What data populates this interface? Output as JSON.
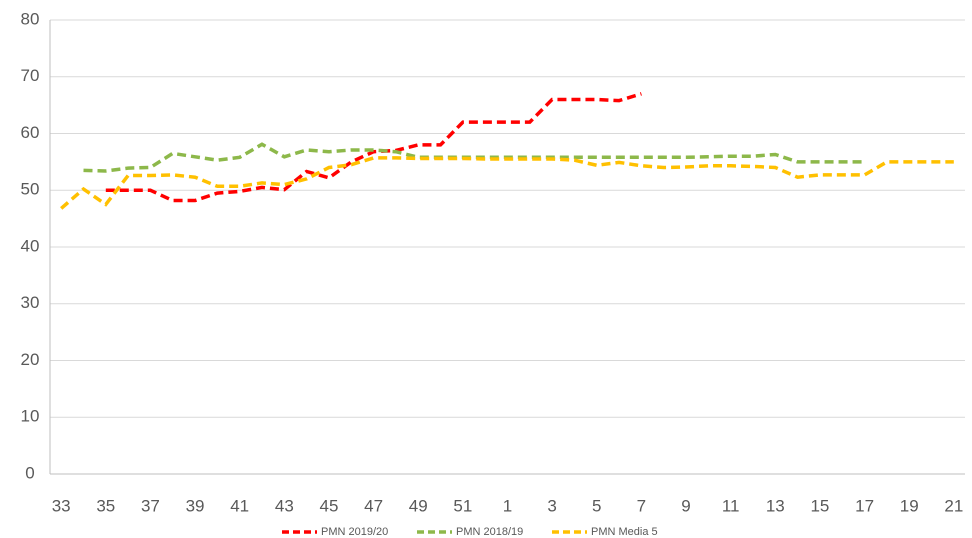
{
  "chart_data": {
    "type": "line",
    "categories": [
      "33",
      null,
      "35",
      null,
      "37",
      null,
      "39",
      null,
      "41",
      null,
      "43",
      null,
      "45",
      null,
      "47",
      null,
      "49",
      null,
      "51",
      null,
      "1",
      null,
      "3",
      null,
      "5",
      null,
      "7",
      null,
      "9",
      null,
      "11",
      null,
      "13",
      null,
      "15",
      null,
      "17",
      null,
      "19",
      null,
      "21"
    ],
    "series": [
      {
        "name": "PMN 2019/20",
        "color": "#ff0000",
        "values": [
          null,
          null,
          50,
          50,
          50,
          48.2,
          48.2,
          49.5,
          49.8,
          50.5,
          50.1,
          53.3,
          52.2,
          55,
          56.8,
          57,
          58,
          58,
          62,
          62,
          62,
          62,
          66,
          66,
          66,
          65.8,
          67,
          null,
          null,
          null,
          null,
          null,
          null,
          null,
          null,
          null,
          null,
          null,
          null,
          null,
          null
        ]
      },
      {
        "name": "PMN 2018/19",
        "color": "#8db84a",
        "values": [
          null,
          53.5,
          53.4,
          53.9,
          54,
          56.5,
          55.9,
          55.3,
          55.8,
          58.1,
          55.9,
          57.1,
          56.8,
          57.1,
          57.1,
          56.8,
          55.8,
          55.8,
          55.8,
          55.8,
          55.8,
          55.8,
          55.8,
          55.8,
          55.8,
          55.8,
          55.8,
          55.8,
          55.8,
          55.9,
          56,
          56,
          56.3,
          55,
          55,
          55,
          55,
          null,
          null,
          null,
          null
        ]
      },
      {
        "name": "PMN Media 5",
        "color": "#ffc000",
        "values": [
          46.8,
          50.2,
          47.5,
          52.6,
          52.6,
          52.7,
          52.3,
          50.7,
          50.7,
          51.3,
          51,
          52,
          54,
          54.5,
          55.7,
          55.7,
          55.6,
          55.6,
          55.6,
          55.5,
          55.5,
          55.5,
          55.5,
          55.3,
          54.4,
          54.9,
          54.3,
          54,
          54.1,
          54.3,
          54.3,
          54.2,
          54,
          52.3,
          52.7,
          52.7,
          52.7,
          55,
          55,
          55,
          55
        ]
      }
    ],
    "ylim": [
      0,
      80
    ],
    "yticks": [
      0,
      10,
      20,
      30,
      40,
      50,
      60,
      70,
      80
    ],
    "grid": true
  }
}
